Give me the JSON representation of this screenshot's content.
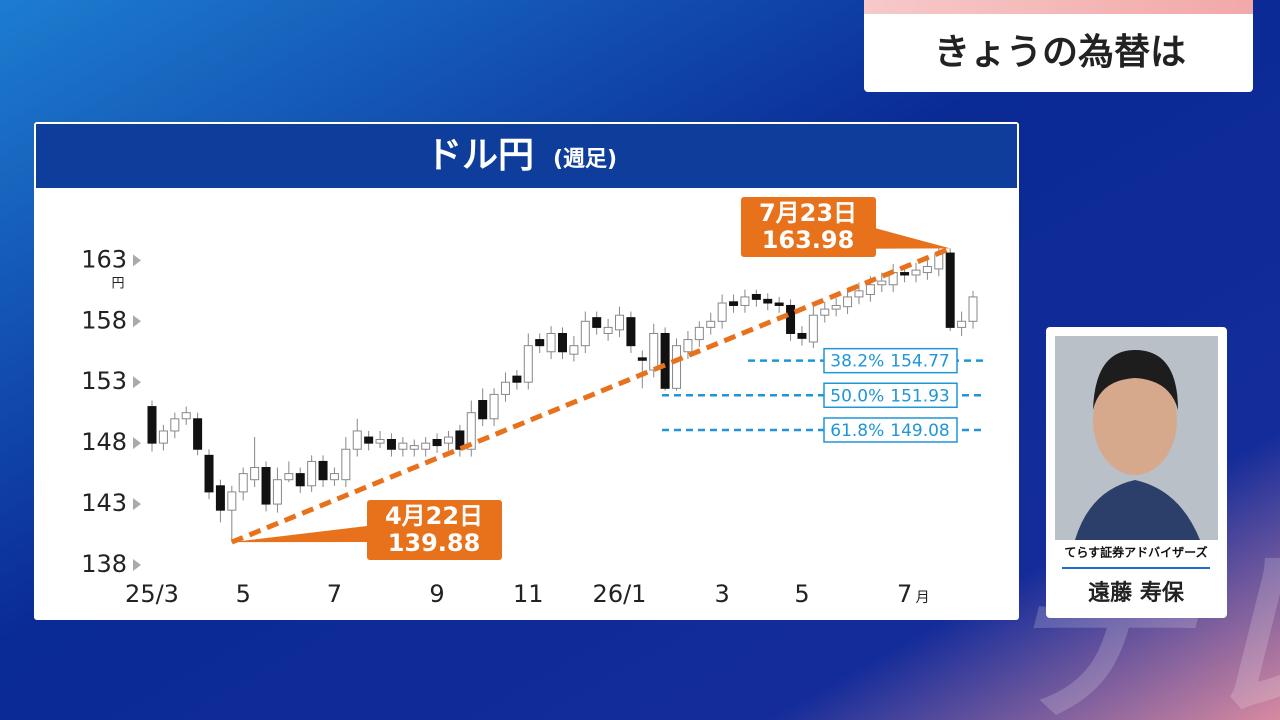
{
  "header": {
    "title": "きょうの為替は"
  },
  "watermark": "テレ東",
  "chart_data": {
    "type": "candlestick",
    "title": "ドル円",
    "subtitle": "(週足)",
    "y_unit": "円",
    "x_unit": "月",
    "categories": [
      "25/3",
      null,
      null,
      null,
      null,
      null,
      null,
      null,
      "5",
      null,
      null,
      null,
      null,
      null,
      null,
      null,
      "7",
      null,
      null,
      null,
      null,
      null,
      null,
      null,
      null,
      "9",
      null,
      null,
      null,
      null,
      null,
      null,
      null,
      "11",
      null,
      null,
      null,
      null,
      null,
      null,
      null,
      "26/1",
      null,
      null,
      null,
      null,
      null,
      null,
      null,
      null,
      "3",
      null,
      null,
      null,
      null,
      null,
      null,
      "5",
      null,
      null,
      null,
      null,
      null,
      null,
      null,
      null,
      "7",
      null,
      null,
      null,
      null,
      null,
      null
    ],
    "open": [
      151,
      148,
      149,
      150,
      150,
      147,
      144.5,
      142.5,
      144,
      145,
      146,
      143,
      145,
      145.5,
      144.5,
      146.5,
      145,
      145,
      147.5,
      148.5,
      148,
      148.3,
      147.5,
      147.5,
      147.5,
      148.3,
      148,
      149,
      147.5,
      151.5,
      150,
      152,
      153.5,
      153,
      156.5,
      155.5,
      157,
      155.3,
      156,
      158.3,
      157,
      157.3,
      158.3,
      155,
      154,
      157,
      152.5,
      155.5,
      156.5,
      157.5,
      158,
      159.6,
      159.3,
      160.2,
      159.8,
      159.5,
      159.3,
      157,
      156.3,
      158.5,
      159,
      159.2,
      160,
      160.2,
      161,
      161,
      162,
      161.8,
      162,
      162.3,
      163.6,
      157.5,
      158
    ],
    "high": [
      151.5,
      149.5,
      150.5,
      151,
      150.5,
      147.5,
      145,
      144.5,
      146,
      148.5,
      146.5,
      146,
      146.5,
      146,
      147,
      147,
      146,
      148.5,
      150,
      149,
      149,
      148.8,
      148.5,
      148.3,
      148.5,
      148.8,
      149,
      149.5,
      151.5,
      152.5,
      152.5,
      153.8,
      154,
      157,
      157,
      157.6,
      157.5,
      156.8,
      158.8,
      158.8,
      158.2,
      159.2,
      158.8,
      155.6,
      157.8,
      157.5,
      156.6,
      157.2,
      158,
      158.7,
      160.2,
      160.2,
      160.6,
      160.6,
      160.3,
      160,
      159.8,
      157.6,
      159.2,
      159.6,
      159.9,
      160.7,
      161.2,
      161.7,
      162,
      162.7,
      162.5,
      162.8,
      163.1,
      164,
      163.98,
      158.8,
      160.5
    ],
    "low": [
      147.3,
      147.4,
      148.4,
      149.5,
      147,
      143.4,
      141.5,
      139.88,
      143.3,
      144.4,
      142.4,
      142.3,
      144.8,
      143.9,
      144,
      144.4,
      144.5,
      144.4,
      146.9,
      147.4,
      147.6,
      146.9,
      146.9,
      146.9,
      146.9,
      147.2,
      147.4,
      146.9,
      146.9,
      149.4,
      149.4,
      151.4,
      152.4,
      152.4,
      155.4,
      154.9,
      154.9,
      154.7,
      155.4,
      156.9,
      156.4,
      156.7,
      155.4,
      152.5,
      153.4,
      152.3,
      152.3,
      154.9,
      155.9,
      156.9,
      157.4,
      158.7,
      158.7,
      159.2,
      158.9,
      158.7,
      156.4,
      156,
      155.8,
      157.9,
      158.4,
      158.6,
      159.4,
      159.6,
      160.4,
      160.4,
      161.2,
      161.2,
      161.4,
      161.7,
      157.2,
      156.8,
      157.4
    ],
    "close": [
      148,
      149,
      150,
      150.5,
      147.5,
      144,
      142.5,
      144,
      145.5,
      146,
      143,
      145,
      145.5,
      144.5,
      146.5,
      145,
      145.5,
      147.5,
      149,
      148,
      148.3,
      147.5,
      148,
      147.8,
      148,
      147.8,
      148.5,
      147.5,
      150.5,
      150,
      152,
      153,
      153,
      156,
      156,
      157,
      155.5,
      156,
      158,
      157.5,
      157.5,
      158.5,
      156,
      154.8,
      157,
      152.5,
      156,
      156.5,
      157.5,
      158,
      159.5,
      159.3,
      160,
      159.8,
      159.5,
      159.3,
      157,
      156.6,
      158.5,
      159,
      159.3,
      160,
      160.5,
      161,
      161.3,
      162,
      161.8,
      162.2,
      162.5,
      163.5,
      157.5,
      158,
      160
    ],
    "ylim": [
      138,
      165
    ],
    "yticks": [
      138,
      143,
      148,
      153,
      158,
      163
    ],
    "annotations": [
      {
        "date": "4月22日",
        "value": 139.88
      },
      {
        "date": "7月23日",
        "value": 163.98
      }
    ],
    "fib_levels": [
      {
        "ratio": "38.2%",
        "value": 154.77
      },
      {
        "ratio": "50.0%",
        "value": 151.93
      },
      {
        "ratio": "61.8%",
        "value": 149.08
      }
    ],
    "up_color": "#ffffff",
    "down_color": "#111111",
    "trend_color": "#e8711c",
    "fib_color": "#1e96d8"
  },
  "commentator": {
    "company": "てらす証券アドバイザーズ",
    "name": "遠藤 寿保"
  }
}
